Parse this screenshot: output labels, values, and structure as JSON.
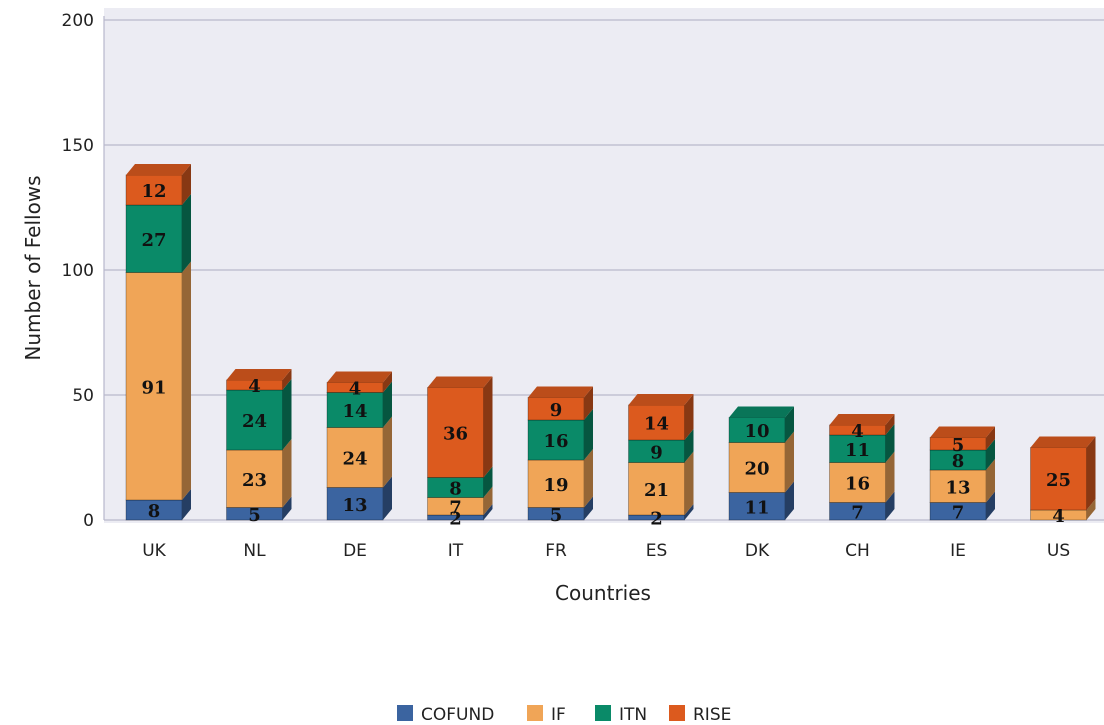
{
  "chart_data": {
    "type": "bar",
    "stacked": true,
    "three_d": true,
    "categories": [
      "UK",
      "NL",
      "DE",
      "IT",
      "FR",
      "ES",
      "DK",
      "CH",
      "IE",
      "US"
    ],
    "series": [
      {
        "name": "COFUND",
        "color": "#3b64a0",
        "values": [
          8,
          5,
          13,
          2,
          5,
          2,
          11,
          7,
          7,
          0
        ]
      },
      {
        "name": "IF",
        "color": "#f0a557",
        "values": [
          91,
          23,
          24,
          7,
          19,
          21,
          20,
          16,
          13,
          4
        ]
      },
      {
        "name": "ITN",
        "color": "#0a8a68",
        "values": [
          27,
          24,
          14,
          8,
          16,
          9,
          10,
          11,
          8,
          0
        ]
      },
      {
        "name": "RISE",
        "color": "#dc5a1e",
        "values": [
          12,
          4,
          4,
          36,
          9,
          14,
          0,
          4,
          5,
          25
        ]
      }
    ],
    "xlabel": "Countries",
    "ylabel": "Number of Fellows",
    "ylim": [
      0,
      200
    ],
    "yticks": [
      0,
      50,
      100,
      150,
      200
    ],
    "grid": true,
    "legend_position": "bottom"
  }
}
